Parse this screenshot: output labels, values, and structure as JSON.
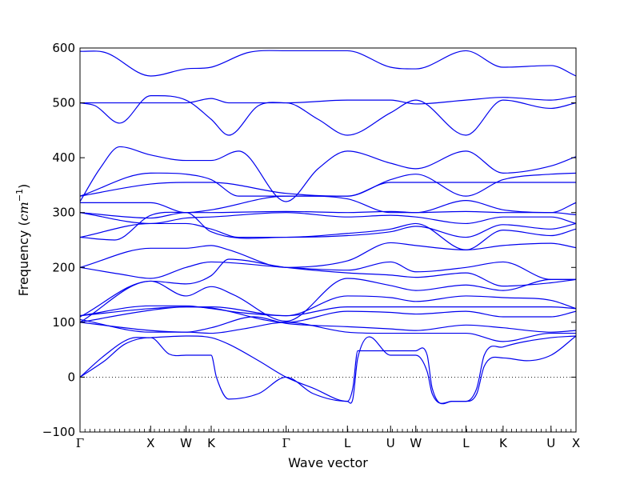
{
  "chart_data": {
    "type": "line",
    "xlabel": "Wave vector",
    "ylabel_text": "Frequency (",
    "ylabel_unit_base": "cm",
    "ylabel_unit_exp": "−1",
    "ylabel_close": ")",
    "ylim": [
      -100,
      600
    ],
    "yticks": [
      -100,
      0,
      100,
      200,
      300,
      400,
      500,
      600
    ],
    "ytick_labels": [
      "−100",
      "0",
      "100",
      "200",
      "300",
      "400",
      "500",
      "600"
    ],
    "zero_line": true,
    "line_color": "#0000ee",
    "xlim": [
      0,
      1
    ],
    "high_symmetry_points": [
      {
        "label": "Γ",
        "x": 0.0
      },
      {
        "label": "X",
        "x": 0.1424
      },
      {
        "label": "W",
        "x": 0.2137
      },
      {
        "label": "K",
        "x": 0.2645
      },
      {
        "label": "Γ",
        "x": 0.4156
      },
      {
        "label": "L",
        "x": 0.5391
      },
      {
        "label": "U",
        "x": 0.6262
      },
      {
        "label": "W",
        "x": 0.677
      },
      {
        "label": "L",
        "x": 0.7781
      },
      {
        "label": "K",
        "x": 0.853
      },
      {
        "label": "U",
        "x": 0.9496
      },
      {
        "label": "X",
        "x": 1.0
      }
    ],
    "series": [
      {
        "x": [
          0,
          0.05,
          0.1424,
          0.2137,
          0.2645,
          0.34,
          0.4156,
          0.48,
          0.5391,
          0.6262,
          0.677,
          0.7781,
          0.853,
          0.9496,
          1.0
        ],
        "y": [
          594,
          592,
          549,
          562,
          565,
          592,
          595,
          595,
          595,
          565,
          562,
          595,
          565,
          568,
          549
        ]
      },
      {
        "x": [
          0,
          0.03,
          0.08,
          0.1424,
          0.2137,
          0.2645,
          0.3,
          0.36,
          0.4156,
          0.48,
          0.5391,
          0.6262,
          0.677,
          0.7781,
          0.853,
          0.9496,
          1.0
        ],
        "y": [
          500,
          495,
          463,
          513,
          505,
          470,
          441,
          495,
          500,
          470,
          441,
          482,
          505,
          441,
          505,
          490,
          500
        ]
      },
      {
        "x": [
          0,
          0.1424,
          0.2137,
          0.2645,
          0.3,
          0.36,
          0.4156,
          0.5391,
          0.6262,
          0.677,
          0.7781,
          0.853,
          0.9496,
          1.0
        ],
        "y": [
          500,
          500,
          500,
          508,
          500,
          500,
          500,
          505,
          505,
          498,
          505,
          510,
          505,
          512
        ]
      },
      {
        "x": [
          0,
          0.04,
          0.08,
          0.1424,
          0.2137,
          0.2645,
          0.32,
          0.4156,
          0.48,
          0.5391,
          0.6262,
          0.677,
          0.7781,
          0.853,
          0.9496,
          1.0
        ],
        "y": [
          320,
          380,
          420,
          405,
          395,
          395,
          412,
          320,
          380,
          412,
          390,
          380,
          412,
          372,
          385,
          402
        ]
      },
      {
        "x": [
          0,
          0.1424,
          0.2137,
          0.2645,
          0.32,
          0.4156,
          0.5391,
          0.6262,
          0.677,
          0.7781,
          0.853,
          0.9496,
          1.0
        ],
        "y": [
          330,
          372,
          370,
          360,
          330,
          330,
          330,
          360,
          370,
          330,
          360,
          370,
          372
        ]
      },
      {
        "x": [
          0,
          0.1424,
          0.2137,
          0.2645,
          0.4156,
          0.5391,
          0.6262,
          0.677,
          0.7781,
          0.853,
          0.9496,
          1.0
        ],
        "y": [
          330,
          352,
          355,
          355,
          335,
          330,
          355,
          355,
          355,
          355,
          355,
          355
        ]
      },
      {
        "x": [
          0,
          0.1424,
          0.2137,
          0.2645,
          0.4156,
          0.5391,
          0.6262,
          0.677,
          0.7781,
          0.853,
          0.9496,
          1.0
        ],
        "y": [
          318,
          318,
          300,
          305,
          330,
          325,
          300,
          300,
          322,
          305,
          300,
          318
        ]
      },
      {
        "x": [
          0,
          0.1424,
          0.2137,
          0.2645,
          0.4156,
          0.5391,
          0.6262,
          0.677,
          0.7781,
          0.853,
          0.9496,
          1.0
        ],
        "y": [
          300,
          290,
          300,
          300,
          302,
          300,
          302,
          300,
          302,
          300,
          300,
          296
        ]
      },
      {
        "x": [
          0,
          0.1424,
          0.2137,
          0.2645,
          0.4156,
          0.5391,
          0.6262,
          0.677,
          0.7781,
          0.853,
          0.9496,
          1.0
        ],
        "y": [
          300,
          280,
          290,
          292,
          300,
          292,
          295,
          292,
          280,
          292,
          292,
          280
        ]
      },
      {
        "x": [
          0,
          0.1424,
          0.2137,
          0.2645,
          0.32,
          0.4156,
          0.5391,
          0.6262,
          0.677,
          0.7781,
          0.853,
          0.9496,
          1.0
        ],
        "y": [
          255,
          280,
          280,
          270,
          255,
          255,
          262,
          270,
          280,
          232,
          268,
          258,
          270
        ]
      },
      {
        "x": [
          0,
          0.07,
          0.1424,
          0.2137,
          0.2645,
          0.4156,
          0.5391,
          0.6262,
          0.677,
          0.7781,
          0.853,
          0.9496,
          1.0
        ],
        "y": [
          255,
          250,
          295,
          300,
          265,
          255,
          258,
          265,
          275,
          255,
          278,
          270,
          280
        ]
      },
      {
        "x": [
          0,
          0.1424,
          0.2137,
          0.2645,
          0.3,
          0.4156,
          0.5391,
          0.6262,
          0.677,
          0.7781,
          0.853,
          0.9496,
          1.0
        ],
        "y": [
          200,
          235,
          235,
          240,
          232,
          200,
          212,
          245,
          240,
          232,
          240,
          244,
          236
        ]
      },
      {
        "x": [
          0,
          0.08,
          0.1424,
          0.2137,
          0.2645,
          0.4156,
          0.5391,
          0.6262,
          0.677,
          0.7781,
          0.853,
          0.9496,
          1.0
        ],
        "y": [
          200,
          188,
          180,
          200,
          210,
          200,
          195,
          210,
          192,
          200,
          210,
          178,
          178
        ]
      },
      {
        "x": [
          0,
          0.1424,
          0.2137,
          0.2645,
          0.3,
          0.4156,
          0.5391,
          0.6262,
          0.677,
          0.7781,
          0.853,
          0.9496,
          1.0
        ],
        "y": [
          100,
          175,
          170,
          185,
          215,
          200,
          190,
          186,
          182,
          190,
          166,
          172,
          178
        ]
      },
      {
        "x": [
          0,
          0.1424,
          0.2137,
          0.2645,
          0.31,
          0.4156,
          0.5391,
          0.6262,
          0.677,
          0.7781,
          0.853,
          0.9496,
          1.0
        ],
        "y": [
          110,
          175,
          148,
          165,
          150,
          102,
          180,
          167,
          158,
          168,
          158,
          178,
          178
        ]
      },
      {
        "x": [
          0,
          0.1424,
          0.2137,
          0.2645,
          0.32,
          0.4156,
          0.5391,
          0.6262,
          0.677,
          0.7781,
          0.853,
          0.9496,
          1.0
        ],
        "y": [
          112,
          130,
          130,
          125,
          118,
          112,
          148,
          145,
          138,
          148,
          145,
          140,
          125
        ]
      },
      {
        "x": [
          0,
          0.1424,
          0.2137,
          0.2645,
          0.4156,
          0.5391,
          0.6262,
          0.677,
          0.7781,
          0.853,
          0.9496,
          1.0
        ],
        "y": [
          112,
          125,
          128,
          128,
          112,
          128,
          128,
          128,
          128,
          128,
          128,
          125
        ]
      },
      {
        "x": [
          0,
          0.1424,
          0.2137,
          0.2645,
          0.4156,
          0.5391,
          0.6262,
          0.677,
          0.7781,
          0.853,
          0.9496,
          1.0
        ],
        "y": [
          100,
          122,
          128,
          126,
          100,
          120,
          118,
          115,
          120,
          110,
          110,
          120
        ]
      },
      {
        "x": [
          0,
          0.1424,
          0.2137,
          0.2645,
          0.35,
          0.4156,
          0.5391,
          0.6262,
          0.677,
          0.7781,
          0.853,
          0.9496,
          1.0
        ],
        "y": [
          100,
          85,
          82,
          90,
          110,
          98,
          92,
          88,
          85,
          95,
          90,
          82,
          85
        ]
      },
      {
        "x": [
          0,
          0.1424,
          0.2137,
          0.2645,
          0.33,
          0.4156,
          0.5391,
          0.6262,
          0.677,
          0.7781,
          0.853,
          0.9496,
          1.0
        ],
        "y": [
          105,
          82,
          82,
          80,
          88,
          100,
          82,
          80,
          80,
          80,
          65,
          80,
          80
        ]
      },
      {
        "x": [
          0,
          0.05,
          0.09,
          0.1424,
          0.18,
          0.2137,
          0.2645,
          0.275,
          0.3,
          0.36,
          0.4156,
          0.47,
          0.5391,
          0.55,
          0.56,
          0.6262,
          0.677,
          0.7,
          0.71,
          0.75,
          0.7781,
          0.8,
          0.815,
          0.853,
          0.9,
          0.9496,
          1.0
        ],
        "y": [
          0,
          30,
          60,
          72,
          42,
          40,
          40,
          0,
          -40,
          -30,
          0,
          -30,
          -44,
          -40,
          35,
          40,
          40,
          10,
          -30,
          -44,
          -44,
          -30,
          20,
          35,
          30,
          40,
          75
        ]
      },
      {
        "x": [
          0,
          0.05,
          0.1,
          0.1424,
          0.2137,
          0.2645,
          0.3,
          0.36,
          0.4156,
          0.47,
          0.5391,
          0.55,
          0.56,
          0.6262,
          0.677,
          0.7,
          0.71,
          0.75,
          0.7781,
          0.8,
          0.815,
          0.853,
          0.9496,
          1.0
        ],
        "y": [
          0,
          40,
          70,
          72,
          75,
          72,
          60,
          30,
          0,
          -20,
          -44,
          -20,
          48,
          48,
          48,
          40,
          -20,
          -44,
          -44,
          -20,
          40,
          55,
          72,
          75
        ]
      }
    ]
  }
}
